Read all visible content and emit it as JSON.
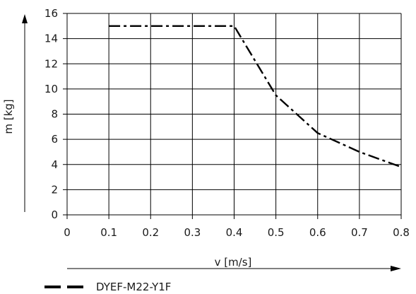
{
  "chart_data": {
    "type": "line",
    "xlabel": "v [m/s]",
    "ylabel": "m [kg]",
    "xlim": [
      0,
      0.8
    ],
    "ylim": [
      0,
      16
    ],
    "x_ticks": [
      "0",
      "0.1",
      "0.2",
      "0.3",
      "0.4",
      "0.5",
      "0.6",
      "0.7",
      "0.8"
    ],
    "y_ticks": [
      "0",
      "2",
      "4",
      "6",
      "8",
      "10",
      "12",
      "14",
      "16"
    ],
    "grid": true,
    "legend_position": "bottom-left",
    "series": [
      {
        "name": "DYEF-M22-Y1F",
        "line_style": "dash-dot",
        "color": "#000000",
        "x": [
          0.1,
          0.4,
          0.5,
          0.6,
          0.7,
          0.8
        ],
        "y": [
          15,
          15,
          9.5,
          6.5,
          5.0,
          3.8
        ]
      }
    ]
  }
}
